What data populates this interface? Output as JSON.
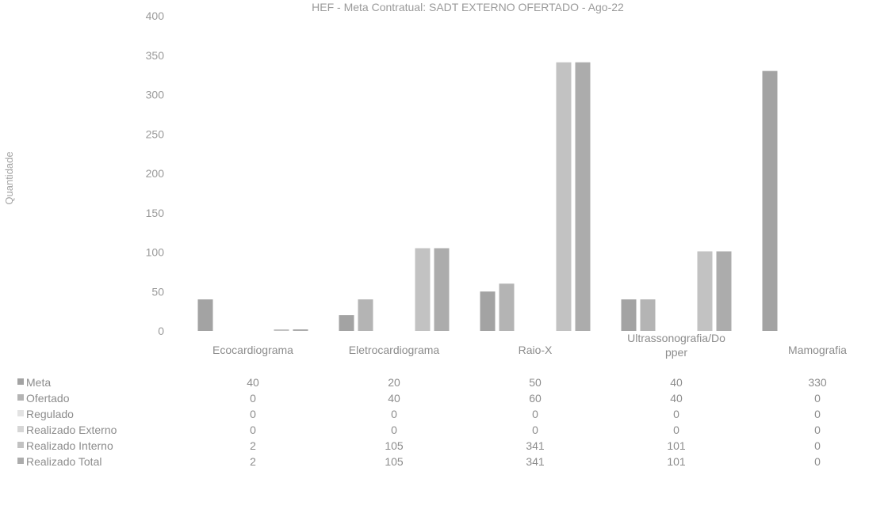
{
  "chart_data": {
    "type": "bar",
    "title": "HEF - Meta Contratual: SADT EXTERNO OFERTADO - Ago-22",
    "ylabel": "Quantidade",
    "ylim": [
      0,
      400
    ],
    "yticks": [
      "400",
      "350",
      "300",
      "250",
      "200",
      "150",
      "100",
      "50",
      "0"
    ],
    "grid": false,
    "legend": "data-table-below",
    "categories": [
      [
        "Ecocardiograma"
      ],
      [
        "Eletrocardiograma"
      ],
      [
        "Raio-X"
      ],
      [
        "Ultrassonografia/Do",
        "pper"
      ],
      [
        "Mamografia"
      ]
    ],
    "series": [
      {
        "name": "Meta",
        "color": "#a3a3a3",
        "values": [
          40,
          20,
          50,
          40,
          330
        ]
      },
      {
        "name": "Ofertado",
        "color": "#b4b4b4",
        "values": [
          0,
          40,
          60,
          40,
          0
        ]
      },
      {
        "name": "Regulado",
        "color": "#e3e3e3",
        "values": [
          0,
          0,
          0,
          0,
          0
        ]
      },
      {
        "name": "Realizado Externo",
        "color": "#d6d6d6",
        "values": [
          0,
          0,
          0,
          0,
          0
        ]
      },
      {
        "name": "Realizado Interno",
        "color": "#c2c2c2",
        "values": [
          2,
          105,
          341,
          101,
          0
        ]
      },
      {
        "name": "Realizado Total",
        "color": "#acacac",
        "values": [
          2,
          105,
          341,
          101,
          0
        ]
      }
    ]
  }
}
